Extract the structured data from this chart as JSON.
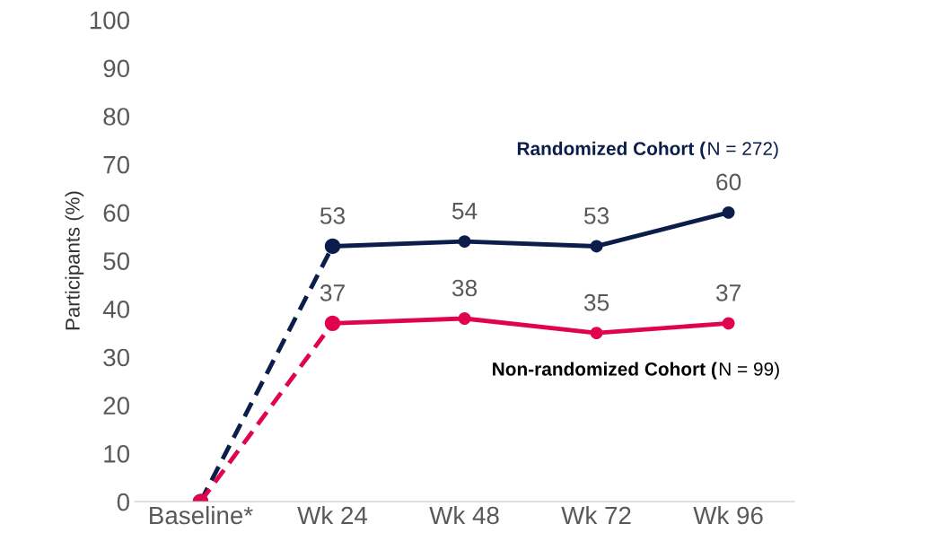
{
  "chart_data": {
    "type": "line",
    "ylabel": "Participants (%)",
    "categories": [
      "Baseline*",
      "Wk 24",
      "Wk 48",
      "Wk 72",
      "Wk 96"
    ],
    "ylim": [
      0,
      100
    ],
    "yticks": [
      0,
      10,
      20,
      30,
      40,
      50,
      60,
      70,
      80,
      90,
      100
    ],
    "grid": false,
    "legend": false,
    "marker": "circle",
    "series": [
      {
        "name": "Randomized Cohort (N = 272)",
        "color": "#0b1d4a",
        "line_style": "solid",
        "values": [
          null,
          53,
          54,
          53,
          60
        ],
        "value_labels": [
          null,
          "53",
          "54",
          "53",
          "60"
        ]
      },
      {
        "name": "Non-randomized Cohort (N = 99)",
        "color": "#e0044e",
        "line_style": "solid",
        "values": [
          null,
          37,
          38,
          35,
          37
        ],
        "value_labels": [
          null,
          "37",
          "38",
          "35",
          "37"
        ]
      },
      {
        "color": "#0b1d4a",
        "line_style": "dashed",
        "values": [
          0,
          53,
          null,
          null,
          null
        ]
      },
      {
        "color": "#e0044e",
        "line_style": "dashed",
        "values": [
          0,
          37,
          null,
          null,
          null
        ]
      }
    ]
  }
}
